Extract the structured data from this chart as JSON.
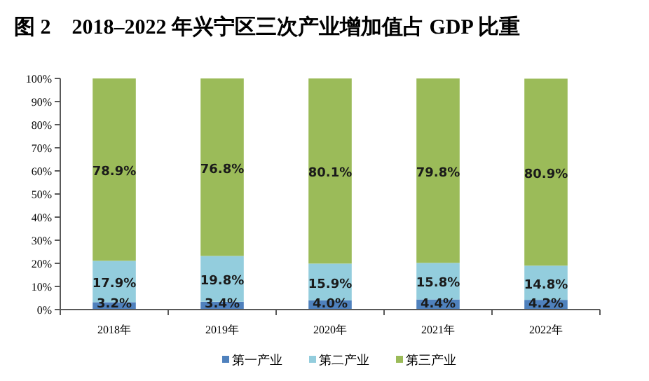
{
  "chart_data": {
    "type": "bar",
    "title": "图 2　2018–2022 年兴宁区三次产业增加值占 GDP 比重",
    "stacked": true,
    "categories": [
      "2018年",
      "2019年",
      "2020年",
      "2021年",
      "2022年"
    ],
    "series": [
      {
        "name": "第一产业",
        "color": "#4f81bd",
        "values": [
          3.2,
          3.4,
          4.0,
          4.4,
          4.2
        ],
        "value_labels": [
          "3.2%",
          "3.4%",
          "4.0%",
          "4.4%",
          "4.2%"
        ]
      },
      {
        "name": "第二产业",
        "color": "#93cddd",
        "values": [
          17.9,
          19.8,
          15.9,
          15.8,
          14.8
        ],
        "value_labels": [
          "17.9%",
          "19.8%",
          "15.9%",
          "15.8%",
          "14.8%"
        ]
      },
      {
        "name": "第三产业",
        "color": "#9bbb59",
        "values": [
          78.9,
          76.8,
          80.1,
          79.8,
          80.9
        ],
        "value_labels": [
          "78.9%",
          "76.8%",
          "80.1%",
          "79.8%",
          "80.9%"
        ]
      }
    ],
    "ylim": [
      0,
      100
    ],
    "yticks": [
      {
        "value": 0,
        "label": "0%"
      },
      {
        "value": 10,
        "label": "10%"
      },
      {
        "value": 20,
        "label": "20%"
      },
      {
        "value": 30,
        "label": "30%"
      },
      {
        "value": 40,
        "label": "40%"
      },
      {
        "value": 50,
        "label": "50%"
      },
      {
        "value": 60,
        "label": "60%"
      },
      {
        "value": 70,
        "label": "70%"
      },
      {
        "value": 80,
        "label": "80%"
      },
      {
        "value": 90,
        "label": "90%"
      },
      {
        "value": 100,
        "label": "100%"
      }
    ],
    "grid": false,
    "legend": "bottom"
  }
}
